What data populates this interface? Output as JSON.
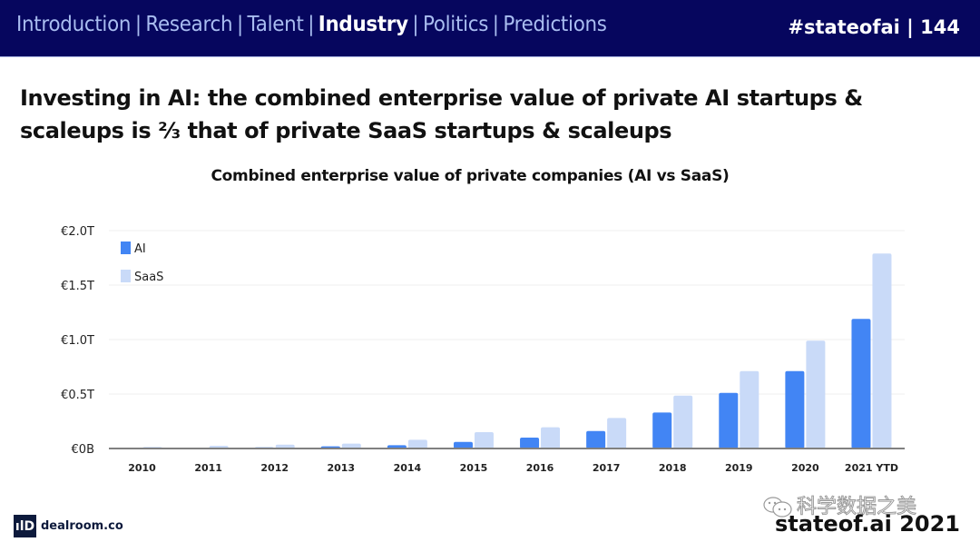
{
  "header": {
    "nav": [
      {
        "label": "Introduction",
        "active": false
      },
      {
        "label": "Research",
        "active": false
      },
      {
        "label": "Talent",
        "active": false
      },
      {
        "label": "Industry",
        "active": true
      },
      {
        "label": "Politics",
        "active": false
      },
      {
        "label": "Predictions",
        "active": false
      }
    ],
    "separator": "|",
    "hashtag": "#stateofai | 144"
  },
  "headline": "Investing in AI: the combined enterprise value of private AI startups & scaleups is ⅔ that of private SaaS startups & scaleups",
  "footer": {
    "source_logo_glyph": "ılD",
    "source_label": "dealroom.co",
    "watermark": "科学数据之美",
    "brand": "stateof.ai 2021"
  },
  "colors": {
    "header_bg": "#06065e",
    "nav_text": "#a9bdf0",
    "ai_bar": "#4285f4",
    "saas_bar": "#c9daf8",
    "axis": "#808080",
    "grid": "#efefef"
  },
  "chart_data": {
    "type": "bar",
    "title": "Combined enterprise value of private companies (AI vs SaaS)",
    "xlabel": "",
    "ylabel": "",
    "categories": [
      "2010",
      "2011",
      "2012",
      "2013",
      "2014",
      "2015",
      "2016",
      "2017",
      "2018",
      "2019",
      "2020",
      "2021 YTD"
    ],
    "series": [
      {
        "name": "AI",
        "color": "#4285f4",
        "values": [
          0.0,
          0.0,
          0.01,
          0.02,
          0.03,
          0.06,
          0.1,
          0.16,
          0.33,
          0.51,
          0.71,
          1.19
        ]
      },
      {
        "name": "SaaS",
        "color": "#c9daf8",
        "values": [
          0.015,
          0.025,
          0.035,
          0.045,
          0.08,
          0.15,
          0.195,
          0.28,
          0.485,
          0.71,
          0.99,
          1.79
        ]
      }
    ],
    "units": "€ trillions",
    "ylim": [
      0,
      2.0
    ],
    "yticks": [
      0,
      0.5,
      1.0,
      1.5,
      2.0
    ],
    "ytick_labels": [
      "€0B",
      "€0.5T",
      "€1.0T",
      "€1.5T",
      "€2.0T"
    ],
    "grid": true,
    "legend": {
      "position": "top-left",
      "entries": [
        "AI",
        "SaaS"
      ]
    }
  }
}
